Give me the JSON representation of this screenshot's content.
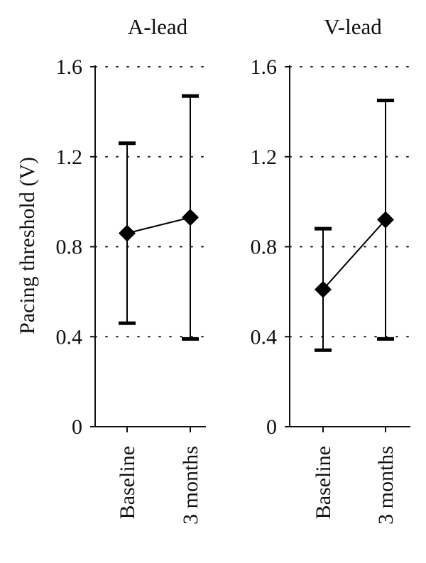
{
  "figure": {
    "ylabel": "Pacing threshold (V)"
  },
  "chart_data": [
    {
      "type": "line",
      "title": "A-lead",
      "ylabel": "Pacing threshold (V)",
      "ylim": [
        0,
        1.6
      ],
      "yticks": [
        0,
        0.4,
        0.8,
        1.2,
        1.6
      ],
      "ytick_labels": [
        "0",
        "0.4",
        "0.8",
        "1.2",
        "1.6"
      ],
      "grid": "horizontal dotted",
      "categories": [
        "Baseline",
        "3 months"
      ],
      "series": [
        {
          "values": [
            0.86,
            0.93
          ],
          "err_low": [
            0.46,
            0.39
          ],
          "err_high": [
            1.26,
            1.47
          ],
          "marker": "diamond",
          "color": "#000000"
        }
      ]
    },
    {
      "type": "line",
      "title": "V-lead",
      "ylim": [
        0,
        1.6
      ],
      "yticks": [
        0,
        0.4,
        0.8,
        1.2,
        1.6
      ],
      "ytick_labels": [
        "0",
        "0.4",
        "0.8",
        "1.2",
        "1.6"
      ],
      "grid": "horizontal dotted",
      "categories": [
        "Baseline",
        "3 months"
      ],
      "series": [
        {
          "values": [
            0.61,
            0.92
          ],
          "err_low": [
            0.34,
            0.39
          ],
          "err_high": [
            0.88,
            1.45
          ],
          "marker": "diamond",
          "color": "#000000"
        }
      ]
    }
  ]
}
